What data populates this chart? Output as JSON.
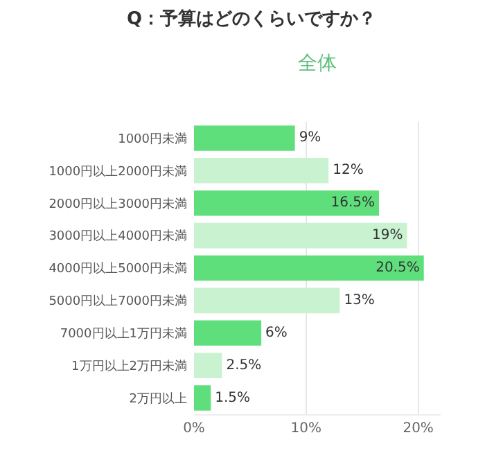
{
  "chart_data": {
    "type": "bar",
    "orientation": "horizontal",
    "title": "Q：予算はどのくらいですか？",
    "subtitle": "全体",
    "categories": [
      "1000円未満",
      "1000円以上2000円未満",
      "2000円以上3000円未満",
      "3000円以上4000円未満",
      "4000円以上5000円未満",
      "5000円以上7000円未満",
      "7000円以上1万円未満",
      "1万円以上2万円未満",
      "2万円以上"
    ],
    "values": [
      9,
      12,
      16.5,
      19,
      20.5,
      13,
      6,
      2.5,
      1.5
    ],
    "value_labels": [
      "9%",
      "12%",
      "16.5%",
      "19%",
      "20.5%",
      "13%",
      "6%",
      "2.5%",
      "1.5%"
    ],
    "colors": [
      "#5fdf7b",
      "#c8f2d0",
      "#5fdf7b",
      "#c8f2d0",
      "#5fdf7b",
      "#c8f2d0",
      "#5fdf7b",
      "#c8f2d0",
      "#5fdf7b"
    ],
    "xlim": [
      0,
      22
    ],
    "xticks": [
      {
        "value": 0,
        "label": "0%"
      },
      {
        "value": 10,
        "label": "10%"
      },
      {
        "value": 20,
        "label": "20%"
      }
    ],
    "grid": "x"
  }
}
